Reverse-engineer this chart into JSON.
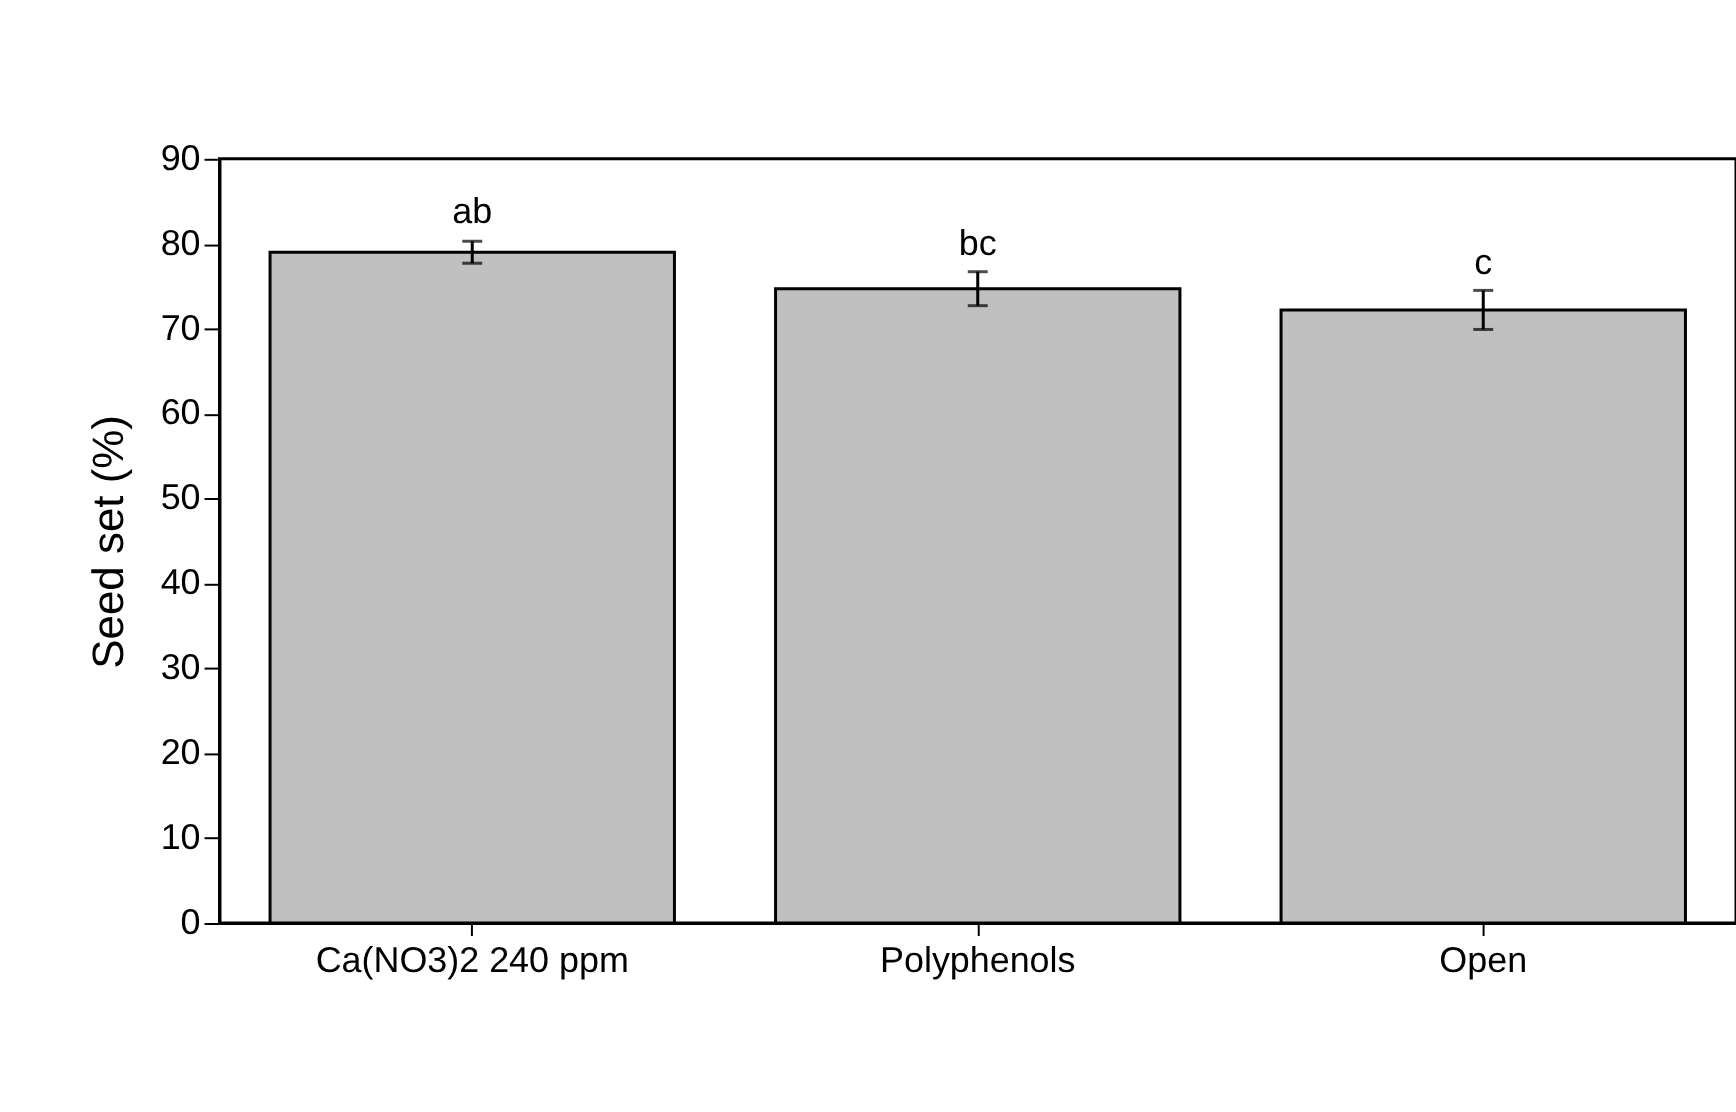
{
  "chart_data": {
    "type": "bar",
    "ylabel": "Seed set (%)",
    "categories": [
      "Ca(NO3)2 240 ppm",
      "Polyphenols",
      "Open"
    ],
    "values": [
      79.0,
      74.7,
      72.2
    ],
    "errors": [
      1.3,
      2.0,
      2.3
    ],
    "color": "#c0c0c0",
    "ylim": [
      0,
      90
    ],
    "yticks": [
      0,
      10,
      20,
      30,
      40,
      50,
      60,
      70,
      80,
      90
    ],
    "grid": false,
    "annotations": [
      {
        "text": "ab",
        "x": "Ca(NO3)2 240 ppm",
        "y": 80.6
      },
      {
        "text": "bc",
        "x": "Polyphenols",
        "y": 76.8
      },
      {
        "text": "c",
        "x": "Open",
        "y": 74.5
      }
    ]
  }
}
